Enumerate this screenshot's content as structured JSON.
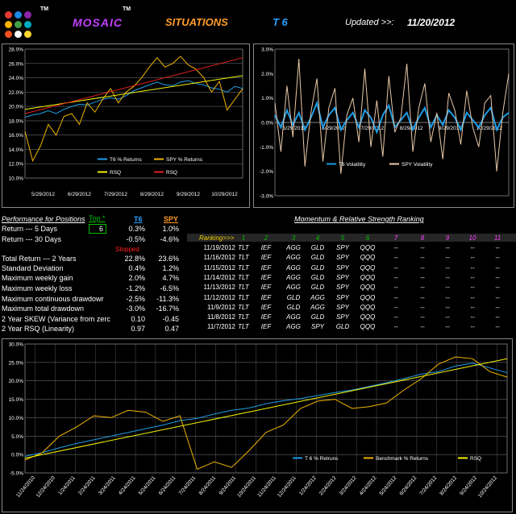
{
  "header": {
    "tm1": "TM",
    "tm2": "TM",
    "mosaic": "MOSAIC",
    "situations": "SITUATIONS",
    "t6": "T 6",
    "updated_label": "Updated >>:",
    "updated_date": "11/20/2012",
    "logo_colors": [
      "#e53935",
      "#1e88e5",
      "#8e24aa",
      "#ffb300",
      "#43a047",
      "#00acc1",
      "#f4511e",
      "#ffffff",
      "#fdd835"
    ]
  },
  "colors": {
    "t6": "#1e9de6",
    "spy": "#f0b400",
    "rsq": "#f5f500",
    "rsq_red": "#e52020",
    "spyvol": "#e8c8a8",
    "green": "#00c000",
    "red": "#ff2020",
    "pink": "#ff40ff",
    "blue": "#2aa0ff"
  },
  "perf": {
    "title": "Performance for Positions",
    "top_label": "Top *",
    "top_value": "6",
    "t6_header": "T6",
    "spy_header": "SPY",
    "stopped": "Stopped",
    "rows": [
      {
        "label": "Return --- 5 Days",
        "t6": "0.3%",
        "spy": "1.0%"
      },
      {
        "label": "Return --- 30 Days",
        "t6": "-0.5%",
        "spy": "-4.6%"
      },
      {
        "label": "Total Return --- 2 Years",
        "t6": "22.8%",
        "spy": "23.6%"
      },
      {
        "label": "Standard Deviation",
        "t6": "0.4%",
        "spy": "1.2%"
      },
      {
        "label": "Maximum weekly gain",
        "t6": "2.0%",
        "spy": "4.7%"
      },
      {
        "label": "Maximum weekly loss",
        "t6": "-1.2%",
        "spy": "-6.5%"
      },
      {
        "label": "Maximum continuous drawdowr",
        "t6": "-2.5%",
        "spy": "-11.3%"
      },
      {
        "label": "Maximum total drawdown",
        "t6": "-3.0%",
        "spy": "-16.7%"
      },
      {
        "label": "2 Year SKEW  (Variance from zerc",
        "t6": "0.10",
        "spy": "-0.45"
      },
      {
        "label": "2 Year RSQ  (Linearity)",
        "t6": "0.97",
        "spy": "0.47"
      }
    ]
  },
  "ranking": {
    "title": "Momentum & Relative Strength Ranking",
    "label": "Ranking>>>",
    "numbers": [
      "1",
      "2",
      "3",
      "4",
      "5",
      "6",
      "7",
      "8",
      "9",
      "10",
      "11"
    ],
    "rows": [
      {
        "date": "11/19/2012",
        "cells": [
          "TLT",
          "IEF",
          "AGG",
          "GLD",
          "SPY",
          "QQQ",
          "--",
          "--",
          "--",
          "--",
          "--"
        ]
      },
      {
        "date": "11/16/2012",
        "cells": [
          "TLT",
          "IEF",
          "AGG",
          "GLD",
          "SPY",
          "QQQ",
          "--",
          "--",
          "--",
          "--",
          "--"
        ]
      },
      {
        "date": "11/15/2012",
        "cells": [
          "TLT",
          "IEF",
          "AGG",
          "GLD",
          "SPY",
          "QQQ",
          "--",
          "--",
          "--",
          "--",
          "--"
        ]
      },
      {
        "date": "11/14/2012",
        "cells": [
          "TLT",
          "IEF",
          "AGG",
          "GLD",
          "SPY",
          "QQQ",
          "--",
          "--",
          "--",
          "--",
          "--"
        ]
      },
      {
        "date": "11/13/2012",
        "cells": [
          "TLT",
          "IEF",
          "AGG",
          "GLD",
          "SPY",
          "QQQ",
          "--",
          "--",
          "--",
          "--",
          "--"
        ]
      },
      {
        "date": "11/12/2012",
        "cells": [
          "TLT",
          "IEF",
          "GLD",
          "AGG",
          "SPY",
          "QQQ",
          "--",
          "--",
          "--",
          "--",
          "--"
        ]
      },
      {
        "date": "11/9/2012",
        "cells": [
          "TLT",
          "IEF",
          "GLD",
          "AGG",
          "SPY",
          "QQQ",
          "--",
          "--",
          "--",
          "--",
          "--"
        ]
      },
      {
        "date": "11/8/2012",
        "cells": [
          "TLT",
          "IEF",
          "AGG",
          "GLD",
          "SPY",
          "QQQ",
          "--",
          "--",
          "--",
          "--",
          "--"
        ]
      },
      {
        "date": "11/7/2012",
        "cells": [
          "TLT",
          "IEF",
          "AGG",
          "SPY",
          "GLD",
          "QQQ",
          "--",
          "--",
          "--",
          "--",
          "--"
        ]
      }
    ]
  },
  "chart_data": [
    {
      "type": "line",
      "yticks": [
        "28.0%",
        "26.0%",
        "24.0%",
        "22.0%",
        "20.0%",
        "18.0%",
        "16.0%",
        "14.0%",
        "12.0%",
        "10.0%"
      ],
      "ylim": [
        10,
        28
      ],
      "xticks": [
        "5/29/2012",
        "6/29/2012",
        "7/29/2012",
        "8/29/2012",
        "9/29/2012",
        "10/29/2012"
      ],
      "legend": [
        "T6 % Returns",
        "SPY % Returns",
        "RSQ",
        "RSQ"
      ],
      "series": [
        {
          "name": "T6 % Returns",
          "values": [
            18.5,
            18.8,
            19.0,
            19.4,
            19.0,
            19.6,
            20.0,
            20.3,
            20.2,
            20.6,
            21.0,
            21.2,
            21.0,
            21.5,
            22.2,
            22.6,
            23.0,
            23.4,
            23.0,
            22.9,
            23.4,
            23.6,
            23.2,
            23.0,
            22.6,
            22.4,
            22.0,
            22.8,
            22.5
          ]
        },
        {
          "name": "SPY % Returns",
          "values": [
            16.5,
            12.4,
            14.5,
            17.5,
            16.0,
            18.6,
            19.0,
            17.5,
            20.5,
            19.2,
            21.0,
            22.5,
            20.5,
            22.0,
            22.8,
            24.0,
            25.5,
            26.8,
            25.5,
            26.0,
            27.0,
            25.8,
            25.2,
            24.0,
            22.0,
            23.5,
            19.5,
            21.0,
            22.5
          ]
        },
        {
          "name": "RSQ",
          "values": [
            19.6,
            24.3
          ]
        },
        {
          "name": "RSQ",
          "values": [
            19.0,
            26.8
          ]
        }
      ]
    },
    {
      "type": "line",
      "yticks": [
        "3.0%",
        "2.0%",
        "1.0%",
        "0.0%",
        "-1.0%",
        "-2.0%",
        "-3.0%"
      ],
      "ylim": [
        -3,
        3
      ],
      "xticks": [
        "5/29/2012",
        "6/29/2012",
        "7/29/2012",
        "8/29/2012",
        "9/29/2012",
        "10/29/2012"
      ],
      "legend": [
        "T6 Volatility",
        "SPY Volatility"
      ],
      "series": [
        {
          "name": "T6 Volatility",
          "values": [
            0.3,
            -0.2,
            0.5,
            -0.1,
            0.4,
            -0.3,
            0.2,
            0.8,
            -0.2,
            0.3,
            0.6,
            -0.3,
            0.1,
            0.4,
            -0.2,
            0.5,
            0.2,
            -0.4,
            0.3,
            0.7,
            -0.2,
            0.1,
            0.4,
            -0.3,
            0.2,
            0.6,
            -0.2,
            0.3,
            -0.1,
            0.5,
            0.2,
            -0.3,
            0.4,
            0.1,
            -0.2,
            0.3,
            0.6,
            -0.3,
            0.2,
            0.4
          ]
        },
        {
          "name": "SPY Volatility",
          "values": [
            0.8,
            -1.2,
            1.5,
            -0.6,
            2.6,
            -1.8,
            0.4,
            1.8,
            -1.6,
            0.6,
            1.4,
            -2.1,
            0.3,
            1.0,
            -0.8,
            2.2,
            -1.0,
            0.9,
            -1.4,
            1.9,
            -0.4,
            0.2,
            2.4,
            -1.2,
            0.6,
            1.6,
            -0.8,
            0.4,
            -1.5,
            1.2,
            0.5,
            -0.9,
            1.3,
            -0.2,
            -1.0,
            0.8,
            1.1,
            -2.0,
            0.4,
            2.0
          ]
        }
      ]
    },
    {
      "type": "line",
      "yticks": [
        "30.0%",
        "25.0%",
        "20.0%",
        "15.0%",
        "10.0%",
        "5.0%",
        "0.0%",
        "-5.0%"
      ],
      "ylim": [
        -5,
        30
      ],
      "xticks": [
        "11/24/2010",
        "12/24/2010",
        "1/24/2011",
        "2/24/2011",
        "3/24/2011",
        "4/24/2011",
        "5/24/2011",
        "6/24/2011",
        "7/24/2011",
        "8/24/2011",
        "9/24/2011",
        "10/24/2011",
        "11/24/2011",
        "12/24/2011",
        "1/24/2012",
        "2/24/2012",
        "3/24/2012",
        "4/24/2012",
        "5/24/2012",
        "6/24/2012",
        "7/24/2012",
        "8/24/2012",
        "9/24/2012",
        "10/24/2012"
      ],
      "legend": [
        "T 6 % Retruns",
        "Benchmark % Returns",
        "RSQ"
      ],
      "series": [
        {
          "name": "T 6 % Retruns",
          "values": [
            -0.5,
            0.5,
            1.8,
            3.0,
            4.0,
            5.0,
            6.0,
            7.0,
            8.0,
            9.2,
            9.8,
            11.0,
            12.0,
            12.6,
            13.8,
            14.6,
            15.2,
            16.0,
            16.8,
            17.5,
            18.5,
            19.5,
            20.6,
            21.8,
            22.5,
            24.0,
            24.8,
            23.5,
            22.2
          ]
        },
        {
          "name": "Benchmark % Returns",
          "values": [
            -1.5,
            0.5,
            5.0,
            7.5,
            10.5,
            10.0,
            12.0,
            11.5,
            9.0,
            10.5,
            -4.0,
            -2.0,
            -3.5,
            1.0,
            6.0,
            8.0,
            12.5,
            14.5,
            15.0,
            12.5,
            13.0,
            14.0,
            17.5,
            20.5,
            24.5,
            26.5,
            26.0,
            22.5,
            21.0
          ]
        },
        {
          "name": "RSQ",
          "values": [
            -1.0,
            26.0
          ]
        }
      ]
    }
  ]
}
